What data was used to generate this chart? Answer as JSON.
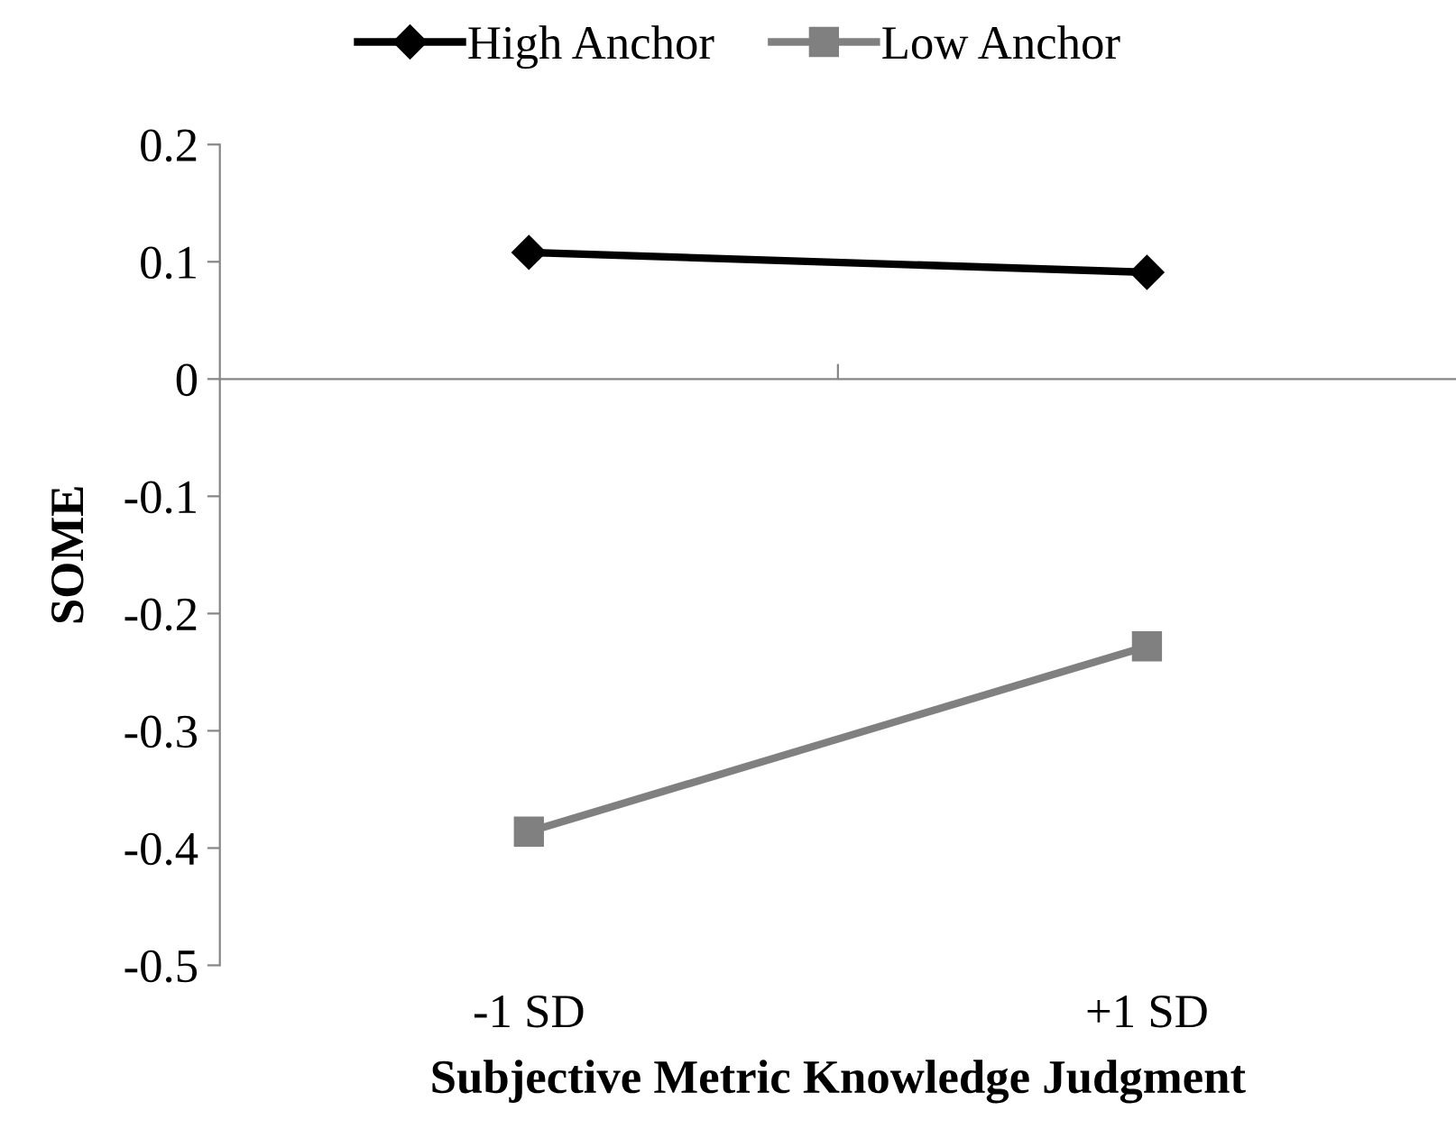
{
  "chart_data": {
    "type": "line",
    "categories": [
      "-1 SD",
      "+1 SD"
    ],
    "series": [
      {
        "name": "High Anchor",
        "color": "#000000",
        "marker": "diamond",
        "values": [
          0.108,
          0.091
        ]
      },
      {
        "name": "Low Anchor",
        "color": "#808080",
        "marker": "square",
        "values": [
          -0.386,
          -0.228
        ]
      }
    ],
    "xlabel": "Subjective Metric Knowledge Judgment",
    "ylabel": "SOME",
    "ylim": [
      -0.5,
      0.2
    ],
    "yticks": [
      -0.5,
      -0.4,
      -0.3,
      -0.2,
      -0.1,
      0,
      0.1,
      0.2
    ],
    "legend": "top",
    "line_style": "solid"
  }
}
